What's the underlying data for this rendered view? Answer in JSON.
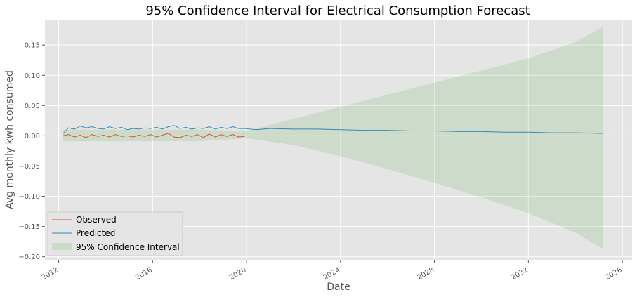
{
  "chart_data": {
    "type": "line",
    "title": "95% Confidence Interval for Electrical Consumption Forecast",
    "xlabel": "Date",
    "ylabel": "Avg monthly kwh consumed",
    "xlim": [
      "2011-06-01",
      "2036-06-01"
    ],
    "ylim": [
      -0.205,
      0.192
    ],
    "x_ticks": [
      {
        "value": "2012-01-01",
        "label": "2012"
      },
      {
        "value": "2016-01-01",
        "label": "2016"
      },
      {
        "value": "2020-01-01",
        "label": "2020"
      },
      {
        "value": "2024-01-01",
        "label": "2024"
      },
      {
        "value": "2028-01-01",
        "label": "2028"
      },
      {
        "value": "2032-01-01",
        "label": "2032"
      },
      {
        "value": "2036-01-01",
        "label": "2036"
      }
    ],
    "y_ticks": [
      {
        "value": 0.15,
        "label": "0.15"
      },
      {
        "value": 0.1,
        "label": "0.10"
      },
      {
        "value": 0.05,
        "label": "0.05"
      },
      {
        "value": 0.0,
        "label": "0.00"
      },
      {
        "value": -0.05,
        "label": "−0.05"
      },
      {
        "value": -0.1,
        "label": "−0.10"
      },
      {
        "value": -0.15,
        "label": "−0.15"
      },
      {
        "value": -0.2,
        "label": "−0.20"
      }
    ],
    "grid": true,
    "legend_position": "lower-left",
    "series": [
      {
        "name": "Observed",
        "color": "#E24A33",
        "x": [
          "2012-03-01",
          "2012-06-01",
          "2012-09-01",
          "2012-12-01",
          "2013-03-01",
          "2013-06-01",
          "2013-09-01",
          "2013-12-01",
          "2014-03-01",
          "2014-06-01",
          "2014-09-01",
          "2014-12-01",
          "2015-03-01",
          "2015-06-01",
          "2015-09-01",
          "2015-12-01",
          "2016-03-01",
          "2016-06-01",
          "2016-09-01",
          "2016-12-01",
          "2017-03-01",
          "2017-06-01",
          "2017-09-01",
          "2017-12-01",
          "2018-03-01",
          "2018-06-01",
          "2018-09-01",
          "2018-12-01",
          "2019-03-01",
          "2019-06-01",
          "2019-09-01",
          "2019-12-01"
        ],
        "values": [
          0.0,
          0.002,
          -0.002,
          0.001,
          -0.003,
          0.002,
          -0.001,
          0.001,
          -0.002,
          0.002,
          -0.001,
          0.0,
          -0.002,
          0.001,
          -0.001,
          0.002,
          -0.002,
          0.001,
          0.004,
          -0.002,
          -0.003,
          0.001,
          -0.001,
          0.002,
          -0.003,
          0.003,
          -0.002,
          0.002,
          -0.001,
          0.002,
          -0.002,
          -0.001
        ]
      },
      {
        "name": "Predicted",
        "color": "#348ABD",
        "x": [
          "2012-03-01",
          "2012-06-01",
          "2012-09-01",
          "2012-12-01",
          "2013-03-01",
          "2013-06-01",
          "2013-09-01",
          "2013-12-01",
          "2014-03-01",
          "2014-06-01",
          "2014-09-01",
          "2014-12-01",
          "2015-03-01",
          "2015-06-01",
          "2015-09-01",
          "2015-12-01",
          "2016-03-01",
          "2016-06-01",
          "2016-09-01",
          "2016-12-01",
          "2017-03-01",
          "2017-06-01",
          "2017-09-01",
          "2017-12-01",
          "2018-03-01",
          "2018-06-01",
          "2018-09-01",
          "2018-12-01",
          "2019-03-01",
          "2019-06-01",
          "2019-09-01",
          "2019-12-01",
          "2020-06-01",
          "2021-01-01",
          "2022-01-01",
          "2023-01-01",
          "2024-01-01",
          "2025-01-01",
          "2026-01-01",
          "2027-01-01",
          "2028-01-01",
          "2029-01-01",
          "2030-01-01",
          "2031-01-01",
          "2032-01-01",
          "2033-01-01",
          "2034-01-01",
          "2035-03-01"
        ],
        "values": [
          0.003,
          0.013,
          0.011,
          0.016,
          0.013,
          0.015,
          0.012,
          0.011,
          0.015,
          0.012,
          0.014,
          0.01,
          0.012,
          0.011,
          0.013,
          0.012,
          0.014,
          0.011,
          0.015,
          0.017,
          0.012,
          0.014,
          0.011,
          0.013,
          0.012,
          0.015,
          0.011,
          0.014,
          0.012,
          0.015,
          0.012,
          0.012,
          0.01,
          0.012,
          0.011,
          0.011,
          0.01,
          0.009,
          0.009,
          0.008,
          0.008,
          0.007,
          0.007,
          0.006,
          0.006,
          0.005,
          0.005,
          0.004
        ]
      }
    ],
    "confidence_interval": {
      "name": "95% Confidence Interval",
      "color": "#7dbf6e",
      "x": [
        "2012-03-01",
        "2014-01-01",
        "2016-01-01",
        "2018-01-01",
        "2020-01-01",
        "2022-01-01",
        "2024-01-01",
        "2026-01-01",
        "2028-01-01",
        "2030-01-01",
        "2032-01-01",
        "2034-01-01",
        "2035-03-01"
      ],
      "upper": [
        0.01,
        0.01,
        0.01,
        0.01,
        0.008,
        0.028,
        0.048,
        0.068,
        0.088,
        0.108,
        0.128,
        0.155,
        0.18
      ],
      "lower": [
        -0.009,
        -0.009,
        -0.009,
        -0.009,
        -0.004,
        -0.015,
        -0.034,
        -0.055,
        -0.078,
        -0.102,
        -0.128,
        -0.16,
        -0.187
      ]
    }
  }
}
